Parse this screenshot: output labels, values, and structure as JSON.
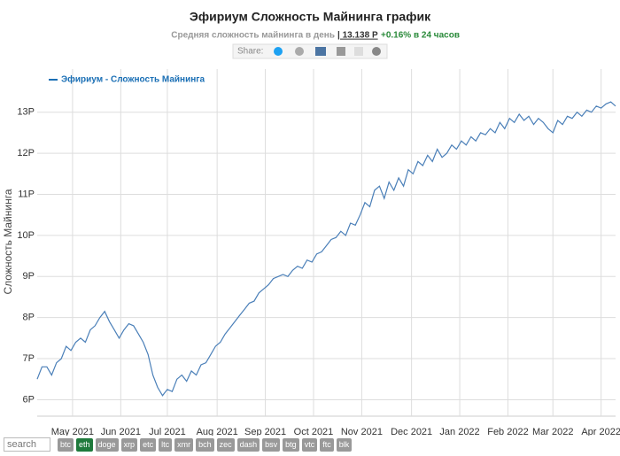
{
  "chart_data": {
    "type": "line",
    "title": "Эфириум Сложность Майнинга график",
    "subtitle": "Средняя сложность майнинга в день",
    "current_value": "| 13.138 P",
    "change": "+0.16% в 24 часов",
    "share_label": "Share:",
    "y_label": "Сложность Майнинга",
    "x": [
      0,
      3,
      6,
      9,
      12,
      15,
      18,
      21,
      24,
      27,
      30,
      33,
      36,
      39,
      42,
      45,
      48,
      51,
      54,
      57,
      60,
      63,
      66,
      69,
      72,
      75,
      78,
      81,
      84,
      87,
      90,
      93,
      96,
      99,
      102,
      105,
      108,
      111,
      114,
      117,
      120,
      123,
      126,
      129,
      132,
      135,
      138,
      141,
      144,
      147,
      150,
      153,
      156,
      159,
      162,
      165,
      168,
      171,
      174,
      177,
      180,
      183,
      186,
      189,
      192,
      195,
      198,
      201,
      204,
      207,
      210,
      213,
      216,
      219,
      222,
      225,
      228,
      231,
      234,
      237,
      240,
      243,
      246,
      249,
      252,
      255,
      258,
      261,
      264,
      267,
      270,
      273,
      276,
      279,
      282,
      285,
      288,
      291,
      294,
      297,
      300,
      303,
      306,
      309,
      312,
      315,
      318,
      321,
      324,
      327,
      330,
      333,
      336,
      339,
      342,
      345,
      348,
      351,
      354,
      357,
      360
    ],
    "series": [
      {
        "name": "Эфириум - Сложность Майнинга",
        "color": "#4a7fb8",
        "values": [
          6.5,
          6.8,
          6.8,
          6.6,
          6.9,
          7.0,
          7.3,
          7.2,
          7.4,
          7.5,
          7.4,
          7.7,
          7.8,
          8.0,
          8.15,
          7.9,
          7.7,
          7.5,
          7.7,
          7.85,
          7.8,
          7.6,
          7.4,
          7.1,
          6.6,
          6.3,
          6.1,
          6.25,
          6.2,
          6.5,
          6.6,
          6.45,
          6.7,
          6.6,
          6.85,
          6.9,
          7.1,
          7.3,
          7.4,
          7.6,
          7.75,
          7.9,
          8.05,
          8.2,
          8.35,
          8.4,
          8.6,
          8.7,
          8.8,
          8.95,
          9.0,
          9.05,
          9.0,
          9.15,
          9.25,
          9.2,
          9.4,
          9.35,
          9.55,
          9.6,
          9.75,
          9.9,
          9.95,
          10.1,
          10.0,
          10.3,
          10.25,
          10.5,
          10.8,
          10.7,
          11.1,
          11.2,
          10.9,
          11.3,
          11.1,
          11.4,
          11.2,
          11.6,
          11.5,
          11.8,
          11.7,
          11.95,
          11.8,
          12.1,
          11.9,
          12.0,
          12.2,
          12.1,
          12.3,
          12.2,
          12.4,
          12.3,
          12.5,
          12.45,
          12.6,
          12.5,
          12.75,
          12.6,
          12.85,
          12.75,
          12.95,
          12.8,
          12.9,
          12.7,
          12.85,
          12.75,
          12.6,
          12.5,
          12.8,
          12.7,
          12.9,
          12.85,
          13.0,
          12.9,
          13.05,
          13.0,
          13.15,
          13.1,
          13.2,
          13.25,
          13.15
        ]
      }
    ],
    "legend_color": "#1a6fb5",
    "xlim": [
      0,
      360
    ],
    "xticks": [
      {
        "value": 22,
        "label": "May 2021"
      },
      {
        "value": 52,
        "label": "Jun 2021"
      },
      {
        "value": 81,
        "label": "Jul 2021"
      },
      {
        "value": 112,
        "label": "Aug 2021"
      },
      {
        "value": 142,
        "label": "Sep 2021"
      },
      {
        "value": 172,
        "label": "Oct 2021"
      },
      {
        "value": 202,
        "label": "Nov 2021"
      },
      {
        "value": 233,
        "label": "Dec 2021"
      },
      {
        "value": 263,
        "label": "Jan 2022"
      },
      {
        "value": 293,
        "label": "Feb 2022"
      },
      {
        "value": 321,
        "label": "Mar 2022"
      },
      {
        "value": 351,
        "label": "Apr 2022"
      }
    ],
    "ylim": [
      5.6,
      14.05
    ],
    "yticks": [
      {
        "value": 6,
        "label": "6P"
      },
      {
        "value": 7,
        "label": "7P"
      },
      {
        "value": 8,
        "label": "8P"
      },
      {
        "value": 9,
        "label": "9P"
      },
      {
        "value": 10,
        "label": "10P"
      },
      {
        "value": 11,
        "label": "11P"
      },
      {
        "value": 12,
        "label": "12P"
      },
      {
        "value": 13,
        "label": "13P"
      }
    ],
    "grid": true
  },
  "ui": {
    "search": "search",
    "coins": [
      "btc",
      "eth",
      "doge",
      "xrp",
      "etc",
      "ltc",
      "xmr",
      "bch",
      "zec",
      "dash",
      "bsv",
      "btg",
      "vtc",
      "ftc",
      "blk"
    ],
    "active_coin": "eth"
  }
}
